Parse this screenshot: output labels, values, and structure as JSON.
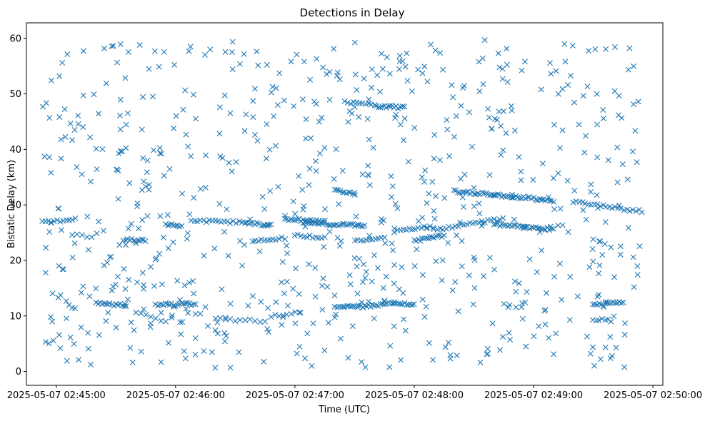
{
  "chart_data": {
    "type": "scatter",
    "title": "Detections in Delay",
    "xlabel": "Time (UTC)",
    "ylabel": "Bistatic Delay (km)",
    "x_ticks": [
      "2025-05-07 02:45:00",
      "2025-05-07 02:46:00",
      "2025-05-07 02:47:00",
      "2025-05-07 02:48:00",
      "2025-05-07 02:49:00",
      "2025-05-07 02:50:00"
    ],
    "xlim": [
      "2025-05-07 02:44:45",
      "2025-05-07 02:50:05"
    ],
    "y_ticks": [
      0,
      10,
      20,
      30,
      40,
      50,
      60
    ],
    "ylim": [
      -2.5,
      62.8
    ],
    "marker": "x",
    "grid": false,
    "colors": {
      "series": "#1f77b4"
    },
    "series": [
      {
        "tracks": [
          {
            "start": "2025-05-07 02:44:53",
            "end": "2025-05-07 02:45:10",
            "y0": 26.8,
            "y1": 27.6,
            "step_s": 1.5
          },
          {
            "start": "2025-05-07 02:45:05",
            "end": "2025-05-07 02:45:10",
            "y0": 12.5,
            "y1": 11.0,
            "step_s": 1.5
          },
          {
            "start": "2025-05-07 02:45:08",
            "end": "2025-05-07 02:45:20",
            "y0": 24.8,
            "y1": 24.2,
            "step_s": 2.5
          },
          {
            "start": "2025-05-07 02:45:20",
            "end": "2025-05-07 02:45:35",
            "y0": 12.3,
            "y1": 11.9,
            "step_s": 1.0
          },
          {
            "start": "2025-05-07 02:45:35",
            "end": "2025-05-07 02:45:45",
            "y0": 23.8,
            "y1": 23.5,
            "step_s": 1.0
          },
          {
            "start": "2025-05-07 02:45:40",
            "end": "2025-05-07 02:45:55",
            "y0": 10.5,
            "y1": 9.0,
            "step_s": 2.5
          },
          {
            "start": "2025-05-07 02:45:50",
            "end": "2025-05-07 02:46:10",
            "y0": 12.0,
            "y1": 12.1,
            "step_s": 1.0
          },
          {
            "start": "2025-05-07 02:45:55",
            "end": "2025-05-07 02:46:03",
            "y0": 26.5,
            "y1": 26.0,
            "step_s": 1.0
          },
          {
            "start": "2025-05-07 02:46:08",
            "end": "2025-05-07 02:46:35",
            "y0": 27.2,
            "y1": 26.8,
            "step_s": 1.5
          },
          {
            "start": "2025-05-07 02:46:20",
            "end": "2025-05-07 02:46:45",
            "y0": 9.5,
            "y1": 9.0,
            "step_s": 2.5
          },
          {
            "start": "2025-05-07 02:46:35",
            "end": "2025-05-07 02:46:48",
            "y0": 26.8,
            "y1": 26.3,
            "step_s": 1.0
          },
          {
            "start": "2025-05-07 02:46:40",
            "end": "2025-05-07 02:46:55",
            "y0": 23.5,
            "y1": 24.0,
            "step_s": 1.5
          },
          {
            "start": "2025-05-07 02:46:48",
            "end": "2025-05-07 02:47:00",
            "y0": 10.0,
            "y1": 10.5,
            "step_s": 2.0
          },
          {
            "start": "2025-05-07 02:46:55",
            "end": "2025-05-07 02:47:15",
            "y0": 27.4,
            "y1": 27.0,
            "step_s": 1.0
          },
          {
            "start": "2025-05-07 02:47:00",
            "end": "2025-05-07 02:47:15",
            "y0": 24.5,
            "y1": 24.0,
            "step_s": 1.5
          },
          {
            "start": "2025-05-07 02:47:05",
            "end": "2025-05-07 02:47:35",
            "y0": 26.7,
            "y1": 26.3,
            "step_s": 1.0
          },
          {
            "start": "2025-05-07 02:47:20",
            "end": "2025-05-07 02:47:45",
            "y0": 11.5,
            "y1": 12.0,
            "step_s": 1.0
          },
          {
            "start": "2025-05-07 02:47:20",
            "end": "2025-05-07 02:47:30",
            "y0": 32.6,
            "y1": 32.0,
            "step_s": 1.0
          },
          {
            "start": "2025-05-07 02:47:25",
            "end": "2025-05-07 02:47:40",
            "y0": 48.5,
            "y1": 47.9,
            "step_s": 1.5
          },
          {
            "start": "2025-05-07 02:47:40",
            "end": "2025-05-07 02:47:55",
            "y0": 47.8,
            "y1": 47.5,
            "step_s": 1.0
          },
          {
            "start": "2025-05-07 02:47:30",
            "end": "2025-05-07 02:47:45",
            "y0": 23.5,
            "y1": 24.0,
            "step_s": 1.5
          },
          {
            "start": "2025-05-07 02:47:45",
            "end": "2025-05-07 02:48:00",
            "y0": 12.4,
            "y1": 12.2,
            "step_s": 1.0
          },
          {
            "start": "2025-05-07 02:47:50",
            "end": "2025-05-07 02:48:10",
            "y0": 25.6,
            "y1": 26.0,
            "step_s": 1.5
          },
          {
            "start": "2025-05-07 02:48:00",
            "end": "2025-05-07 02:48:15",
            "y0": 23.5,
            "y1": 24.5,
            "step_s": 1.0
          },
          {
            "start": "2025-05-07 02:48:10",
            "end": "2025-05-07 02:48:45",
            "y0": 25.5,
            "y1": 27.5,
            "step_s": 1.5
          },
          {
            "start": "2025-05-07 02:48:20",
            "end": "2025-05-07 02:49:10",
            "y0": 32.5,
            "y1": 30.8,
            "step_s": 1.0
          },
          {
            "start": "2025-05-07 02:48:40",
            "end": "2025-05-07 02:49:10",
            "y0": 26.5,
            "y1": 25.6,
            "step_s": 1.0
          },
          {
            "start": "2025-05-07 02:48:45",
            "end": "2025-05-07 02:48:55",
            "y0": 12.3,
            "y1": 11.5,
            "step_s": 3.0
          },
          {
            "start": "2025-05-07 02:49:20",
            "end": "2025-05-07 02:49:55",
            "y0": 30.5,
            "y1": 28.8,
            "step_s": 1.5
          },
          {
            "start": "2025-05-07 02:49:30",
            "end": "2025-05-07 02:49:45",
            "y0": 12.0,
            "y1": 12.5,
            "step_s": 1.0
          },
          {
            "start": "2025-05-07 02:49:30",
            "end": "2025-05-07 02:49:40",
            "y0": 9.3,
            "y1": 9.2,
            "step_s": 1.5
          },
          {
            "start": "2025-05-07 02:49:30",
            "end": "2025-05-07 02:49:40",
            "y0": 24.0,
            "y1": 22.0,
            "step_s": 3.0
          }
        ],
        "random_detections": {
          "count": 720,
          "x_range": [
            "2025-05-07 02:44:53",
            "2025-05-07 02:49:54"
          ],
          "y_range": [
            0.5,
            60.0
          ]
        }
      }
    ]
  }
}
